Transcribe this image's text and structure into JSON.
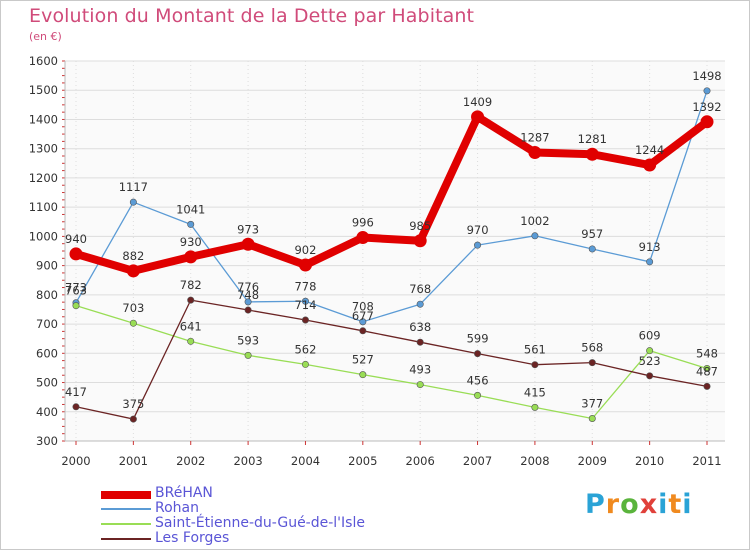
{
  "header": {
    "title": "Evolution du Montant de la Dette par Habitant",
    "unit": "(en €)"
  },
  "brand": {
    "logo_text": "Proxiti"
  },
  "chart_data": {
    "type": "line",
    "title": "Evolution du Montant de la Dette par Habitant",
    "subtitle": "(en €)",
    "xlabel": "",
    "ylabel": "",
    "x": [
      "2000",
      "2001",
      "2002",
      "2003",
      "2004",
      "2005",
      "2006",
      "2007",
      "2008",
      "2009",
      "2010",
      "2011"
    ],
    "ylim": [
      300,
      1600
    ],
    "yticks": [
      300,
      400,
      500,
      600,
      700,
      800,
      900,
      1000,
      1100,
      1200,
      1300,
      1400,
      1500,
      1600
    ],
    "grid": true,
    "legend_position": "bottom-left",
    "series": [
      {
        "name": "BRéHAN",
        "color": "#e00000",
        "values": [
          940,
          882,
          930,
          973,
          902,
          996,
          985,
          1409,
          1287,
          1281,
          1244,
          1392
        ]
      },
      {
        "name": "Rohan",
        "color": "#5b9bd5",
        "values": [
          773,
          1117,
          1041,
          776,
          778,
          708,
          768,
          970,
          1002,
          957,
          913,
          1498
        ]
      },
      {
        "name": "Saint-Étienne-du-Gué-de-l'Isle",
        "color": "#99dd55",
        "values": [
          763,
          703,
          641,
          593,
          562,
          527,
          493,
          456,
          415,
          377,
          609,
          548
        ]
      },
      {
        "name": "Les Forges",
        "color": "#6b2424",
        "values": [
          417,
          375,
          782,
          748,
          714,
          677,
          638,
          599,
          561,
          568,
          523,
          487
        ]
      }
    ]
  }
}
